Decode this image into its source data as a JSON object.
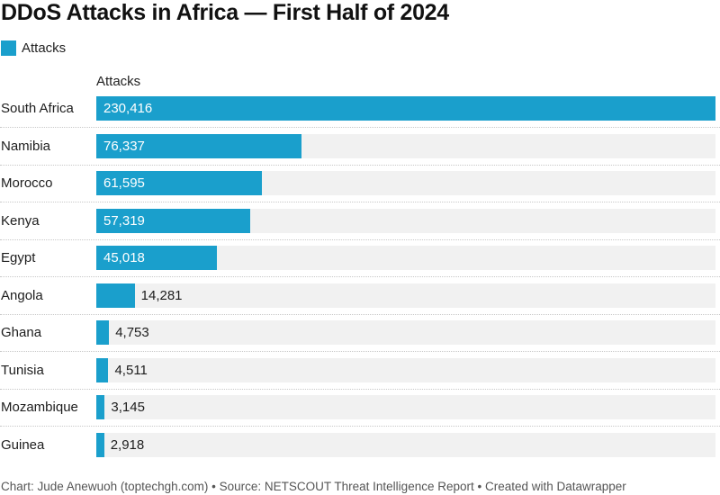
{
  "title": "DDoS Attacks in Africa — First Half of 2024",
  "footer": "Chart: Jude Anewuoh (toptechgh.com) • Source: NETSCOUT Threat Intelligence Report • Created with Datawrapper",
  "colors": {
    "bar": "#1a9fcc",
    "bar_background": "#f1f1f1"
  },
  "chart_data": {
    "type": "bar",
    "orientation": "horizontal",
    "title": "DDoS Attacks in Africa — First Half of 2024",
    "legend": [
      {
        "label": "Attacks",
        "color": "#1a9fcc"
      }
    ],
    "legend_position": "top-left",
    "column_header": "Attacks",
    "xlabel": "",
    "ylabel": "",
    "xlim": [
      0,
      230416
    ],
    "grid": false,
    "categories": [
      "South Africa",
      "Namibia",
      "Morocco",
      "Kenya",
      "Egypt",
      "Angola",
      "Ghana",
      "Tunisia",
      "Mozambique",
      "Guinea"
    ],
    "values": [
      230416,
      76337,
      61595,
      57319,
      45018,
      14281,
      4753,
      4511,
      3145,
      2918
    ],
    "labels": [
      "230,416",
      "76,337",
      "61,595",
      "57,319",
      "45,018",
      "14,281",
      "4,753",
      "4,511",
      "3,145",
      "2,918"
    ],
    "series": [
      {
        "name": "Attacks",
        "values": [
          230416,
          76337,
          61595,
          57319,
          45018,
          14281,
          4753,
          4511,
          3145,
          2918
        ]
      }
    ]
  }
}
